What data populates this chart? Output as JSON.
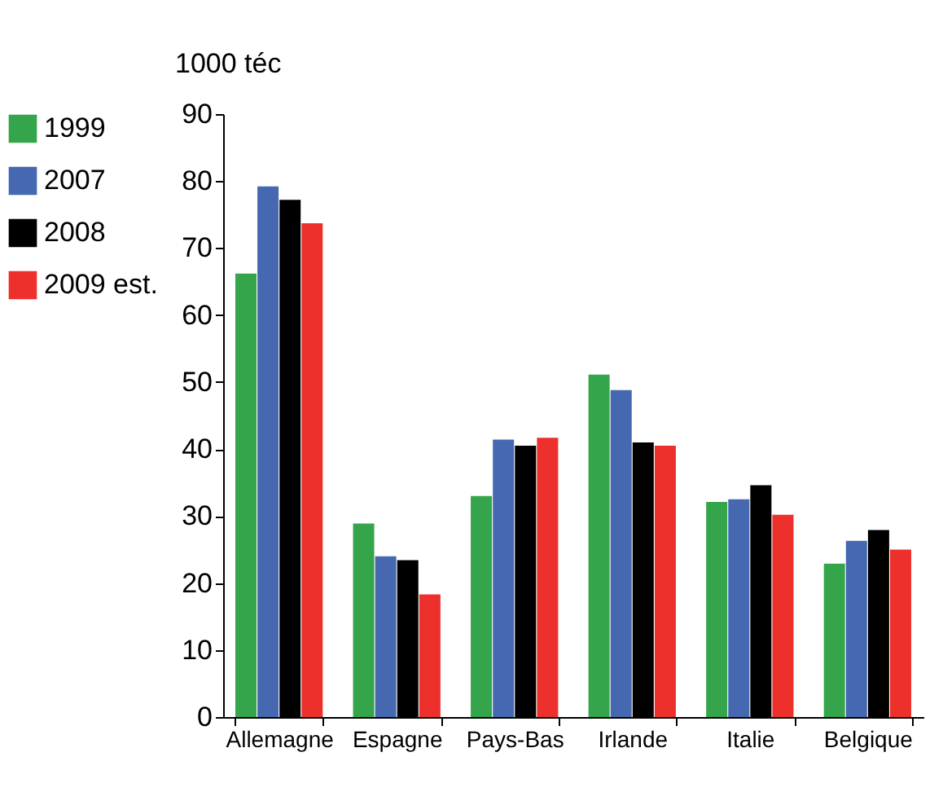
{
  "chart_data": {
    "type": "bar",
    "ylabel": "1000 téc",
    "categories": [
      "Allemagne",
      "Espagne",
      "Pays-Bas",
      "Irlande",
      "Italie",
      "Belgique"
    ],
    "series": [
      {
        "name": "1999",
        "color": "#34a54b",
        "values": [
          66.2,
          28.9,
          33.0,
          51.1,
          32.1,
          22.9
        ]
      },
      {
        "name": "2007",
        "color": "#4568b0",
        "values": [
          79.2,
          24.0,
          41.4,
          48.8,
          32.5,
          26.3
        ]
      },
      {
        "name": "2008",
        "color": "#000000",
        "values": [
          77.2,
          23.4,
          40.5,
          41.0,
          34.6,
          27.9
        ]
      },
      {
        "name": "2009 est.",
        "color": "#ee302c",
        "values": [
          73.7,
          18.3,
          41.7,
          40.5,
          30.2,
          25.0
        ]
      }
    ],
    "ylim": [
      0,
      90
    ],
    "yticks": [
      0,
      10,
      20,
      30,
      40,
      50,
      60,
      70,
      80,
      90
    ],
    "grid": false,
    "legend": "left"
  }
}
